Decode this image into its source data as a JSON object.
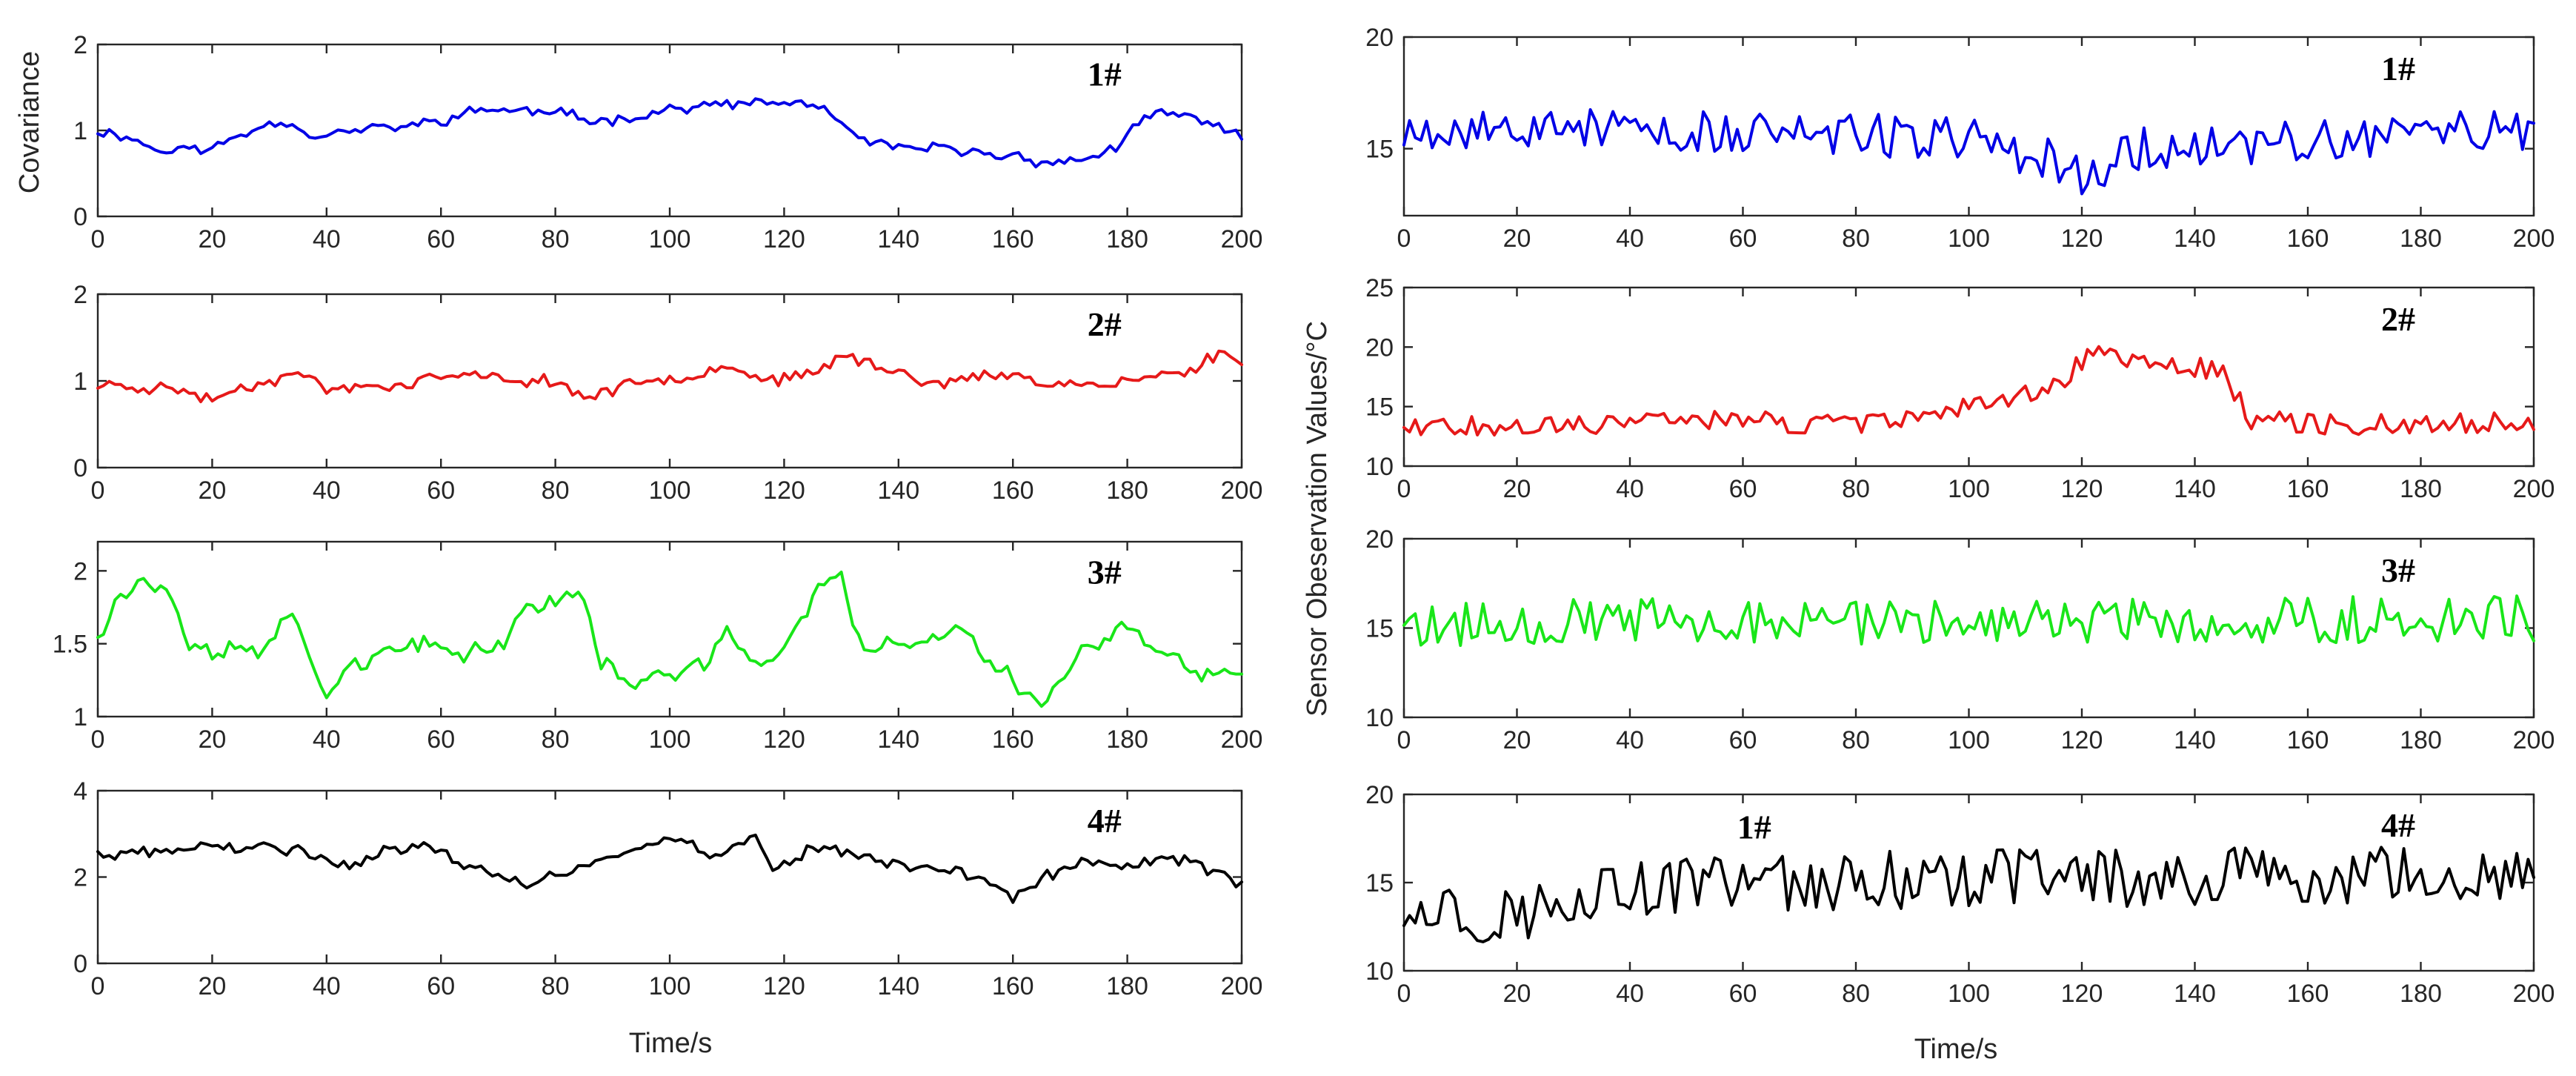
{
  "chart_data": [
    {
      "type": "line",
      "column": "left",
      "row": 0,
      "series": [
        {
          "name": "1#",
          "color": "#0000e6",
          "x_range": [
            0,
            200
          ],
          "gen": {
            "seed": 11,
            "base": 1.0,
            "anchors": [
              [
                0,
                1.0
              ],
              [
                5,
                0.95
              ],
              [
                10,
                0.78
              ],
              [
                20,
                0.78
              ],
              [
                25,
                0.95
              ],
              [
                32,
                1.15
              ],
              [
                38,
                0.95
              ],
              [
                55,
                1.05
              ],
              [
                68,
                1.25
              ],
              [
                80,
                1.2
              ],
              [
                85,
                1.1
              ],
              [
                100,
                1.25
              ],
              [
                112,
                1.3
              ],
              [
                125,
                1.32
              ],
              [
                135,
                0.8
              ],
              [
                145,
                0.78
              ],
              [
                160,
                0.7
              ],
              [
                170,
                0.62
              ],
              [
                178,
                0.8
              ],
              [
                185,
                1.2
              ],
              [
                195,
                1.1
              ],
              [
                200,
                0.9
              ]
            ],
            "noise": 0.04,
            "walk": 0.02
          }
        }
      ],
      "tag": "1#",
      "x_axis": {
        "min": 0,
        "max": 200,
        "ticks": [
          0,
          20,
          40,
          60,
          80,
          100,
          120,
          140,
          160,
          180,
          200
        ]
      },
      "y_axis": {
        "min": 0,
        "max": 2,
        "ticks": [
          0,
          1,
          2
        ],
        "tick_labels": [
          "0",
          "1",
          "2"
        ]
      },
      "ylabel": "Covariance",
      "xlabel": ""
    },
    {
      "type": "line",
      "column": "left",
      "row": 1,
      "series": [
        {
          "name": "2#",
          "color": "#e61919",
          "x_range": [
            0,
            200
          ],
          "gen": {
            "seed": 23,
            "base": 1.0,
            "anchors": [
              [
                0,
                0.95
              ],
              [
                10,
                0.95
              ],
              [
                20,
                0.8
              ],
              [
                30,
                1.05
              ],
              [
                35,
                1.1
              ],
              [
                40,
                0.9
              ],
              [
                50,
                0.95
              ],
              [
                60,
                1.05
              ],
              [
                80,
                1.0
              ],
              [
                85,
                0.82
              ],
              [
                100,
                1.05
              ],
              [
                110,
                1.2
              ],
              [
                118,
                1.0
              ],
              [
                125,
                1.05
              ],
              [
                130,
                1.3
              ],
              [
                135,
                1.2
              ],
              [
                145,
                1.0
              ],
              [
                160,
                1.05
              ],
              [
                175,
                0.95
              ],
              [
                190,
                1.1
              ],
              [
                197,
                1.35
              ],
              [
                200,
                1.2
              ]
            ],
            "noise": 0.05,
            "walk": 0.02
          }
        }
      ],
      "tag": "2#",
      "x_axis": {
        "min": 0,
        "max": 200,
        "ticks": [
          0,
          20,
          40,
          60,
          80,
          100,
          120,
          140,
          160,
          180,
          200
        ]
      },
      "y_axis": {
        "min": 0,
        "max": 2,
        "ticks": [
          0,
          1,
          2
        ],
        "tick_labels": [
          "0",
          "1",
          "2"
        ]
      },
      "ylabel": "",
      "xlabel": ""
    },
    {
      "type": "line",
      "column": "left",
      "row": 2,
      "series": [
        {
          "name": "3#",
          "color": "#19e619",
          "x_range": [
            0,
            200
          ],
          "gen": {
            "seed": 37,
            "base": 1.5,
            "anchors": [
              [
                0,
                1.55
              ],
              [
                3,
                1.85
              ],
              [
                8,
                1.92
              ],
              [
                12,
                1.9
              ],
              [
                16,
                1.5
              ],
              [
                28,
                1.45
              ],
              [
                33,
                1.75
              ],
              [
                38,
                1.3
              ],
              [
                40,
                1.2
              ],
              [
                45,
                1.4
              ],
              [
                55,
                1.45
              ],
              [
                65,
                1.45
              ],
              [
                70,
                1.5
              ],
              [
                75,
                1.75
              ],
              [
                85,
                1.85
              ],
              [
                88,
                1.35
              ],
              [
                93,
                1.25
              ],
              [
                105,
                1.3
              ],
              [
                110,
                1.55
              ],
              [
                117,
                1.35
              ],
              [
                122,
                1.6
              ],
              [
                128,
                1.98
              ],
              [
                130,
                1.95
              ],
              [
                134,
                1.45
              ],
              [
                145,
                1.5
              ],
              [
                150,
                1.6
              ],
              [
                158,
                1.3
              ],
              [
                165,
                1.1
              ],
              [
                172,
                1.45
              ],
              [
                180,
                1.6
              ],
              [
                190,
                1.3
              ],
              [
                200,
                1.3
              ]
            ],
            "noise": 0.05,
            "walk": 0.02
          }
        }
      ],
      "tag": "3#",
      "x_axis": {
        "min": 0,
        "max": 200,
        "ticks": [
          0,
          20,
          40,
          60,
          80,
          100,
          120,
          140,
          160,
          180,
          200
        ]
      },
      "y_axis": {
        "min": 1,
        "max": 2.2,
        "ticks": [
          1,
          1.5,
          2
        ],
        "tick_labels": [
          "1",
          "1.5",
          "2"
        ]
      },
      "ylabel": "",
      "xlabel": ""
    },
    {
      "type": "line",
      "column": "left",
      "row": 3,
      "series": [
        {
          "name": "4#",
          "color": "#000000",
          "x_range": [
            0,
            200
          ],
          "gen": {
            "seed": 41,
            "base": 2.5,
            "anchors": [
              [
                0,
                2.5
              ],
              [
                10,
                2.55
              ],
              [
                20,
                2.7
              ],
              [
                35,
                2.6
              ],
              [
                45,
                2.3
              ],
              [
                55,
                2.8
              ],
              [
                65,
                2.3
              ],
              [
                75,
                1.8
              ],
              [
                85,
                2.3
              ],
              [
                100,
                2.9
              ],
              [
                110,
                2.5
              ],
              [
                115,
                3.0
              ],
              [
                118,
                2.2
              ],
              [
                125,
                2.7
              ],
              [
                140,
                2.3
              ],
              [
                150,
                2.2
              ],
              [
                160,
                1.5
              ],
              [
                170,
                2.3
              ],
              [
                190,
                2.4
              ],
              [
                200,
                1.9
              ]
            ],
            "noise": 0.12,
            "walk": 0.03
          }
        }
      ],
      "tag": "4#",
      "x_axis": {
        "min": 0,
        "max": 200,
        "ticks": [
          0,
          20,
          40,
          60,
          80,
          100,
          120,
          140,
          160,
          180,
          200
        ]
      },
      "y_axis": {
        "min": 0,
        "max": 4,
        "ticks": [
          0,
          2,
          4
        ],
        "tick_labels": [
          "0",
          "2",
          "4"
        ]
      },
      "ylabel": "",
      "xlabel": "Time/s"
    },
    {
      "type": "line",
      "column": "right",
      "row": 0,
      "series": [
        {
          "name": "1#",
          "color": "#0000e6",
          "x_range": [
            0,
            200
          ],
          "gen": {
            "seed": 53,
            "base": 15.8,
            "anchors": [
              [
                0,
                16
              ],
              [
                100,
                15.5
              ],
              [
                115,
                14.5
              ],
              [
                120,
                13.8
              ],
              [
                130,
                15
              ],
              [
                200,
                15.8
              ]
            ],
            "noise": 1.0,
            "walk": 0.0
          }
        }
      ],
      "tag": "1#",
      "x_axis": {
        "min": 0,
        "max": 200,
        "ticks": [
          0,
          20,
          40,
          60,
          80,
          100,
          120,
          140,
          160,
          180,
          200
        ]
      },
      "y_axis": {
        "min": 12,
        "max": 20,
        "ticks": [
          15,
          20
        ],
        "tick_labels": [
          "15",
          "20"
        ]
      },
      "ylabel": "",
      "xlabel": ""
    },
    {
      "type": "line",
      "column": "right",
      "row": 1,
      "series": [
        {
          "name": "2#",
          "color": "#e61919",
          "x_range": [
            0,
            200
          ],
          "gen": {
            "seed": 67,
            "base": 13.5,
            "anchors": [
              [
                0,
                13.5
              ],
              [
                40,
                13.5
              ],
              [
                60,
                14.0
              ],
              [
                80,
                13.2
              ],
              [
                95,
                14.8
              ],
              [
                115,
                16.5
              ],
              [
                122,
                19.5
              ],
              [
                130,
                18.8
              ],
              [
                145,
                18.0
              ],
              [
                150,
                14.0
              ],
              [
                165,
                13.5
              ],
              [
                200,
                13.8
              ]
            ],
            "noise": 0.9,
            "walk": 0.0
          }
        }
      ],
      "tag": "2#",
      "x_axis": {
        "min": 0,
        "max": 200,
        "ticks": [
          0,
          20,
          40,
          60,
          80,
          100,
          120,
          140,
          160,
          180,
          200
        ]
      },
      "y_axis": {
        "min": 10,
        "max": 25,
        "ticks": [
          10,
          15,
          20,
          25
        ],
        "tick_labels": [
          "10",
          "15",
          "20",
          "25"
        ]
      },
      "ylabel": "",
      "xlabel": ""
    },
    {
      "type": "line",
      "column": "right",
      "row": 2,
      "series": [
        {
          "name": "3#",
          "color": "#19e619",
          "x_range": [
            0,
            200
          ],
          "gen": {
            "seed": 79,
            "base": 15.5,
            "anchors": [
              [
                0,
                15.3
              ],
              [
                200,
                15.5
              ]
            ],
            "noise": 1.3,
            "walk": 0.0
          }
        }
      ],
      "tag": "3#",
      "x_axis": {
        "min": 0,
        "max": 200,
        "ticks": [
          0,
          20,
          40,
          60,
          80,
          100,
          120,
          140,
          160,
          180,
          200
        ]
      },
      "y_axis": {
        "min": 10,
        "max": 20,
        "ticks": [
          10,
          15,
          20
        ],
        "tick_labels": [
          "10",
          "15",
          "20"
        ]
      },
      "ylabel": "",
      "xlabel": ""
    },
    {
      "type": "line",
      "column": "right",
      "row": 3,
      "series": [
        {
          "name": "4#",
          "color": "#000000",
          "x_range": [
            0,
            200
          ],
          "gen": {
            "seed": 97,
            "base": 15.0,
            "anchors": [
              [
                0,
                14.0
              ],
              [
                20,
                13.0
              ],
              [
                30,
                14.5
              ],
              [
                60,
                15.0
              ],
              [
                200,
                15.5
              ]
            ],
            "noise": 1.7,
            "walk": 0.0
          }
        }
      ],
      "tag": "4#",
      "extra_tag": {
        "text": "1#",
        "x": 62,
        "y": 17.5
      },
      "x_axis": {
        "min": 0,
        "max": 200,
        "ticks": [
          0,
          20,
          40,
          60,
          80,
          100,
          120,
          140,
          160,
          180,
          200
        ]
      },
      "y_axis": {
        "min": 10,
        "max": 20,
        "ticks": [
          10,
          15,
          20
        ],
        "tick_labels": [
          "10",
          "15",
          "20"
        ]
      },
      "ylabel": "",
      "xlabel": "Time/s"
    }
  ],
  "figure": {
    "left_ylabel": "Covariance",
    "right_ylabel": "Sensor Obeservation Values/°C",
    "left_xlabel": "Time/s",
    "right_xlabel": "Time/s"
  }
}
